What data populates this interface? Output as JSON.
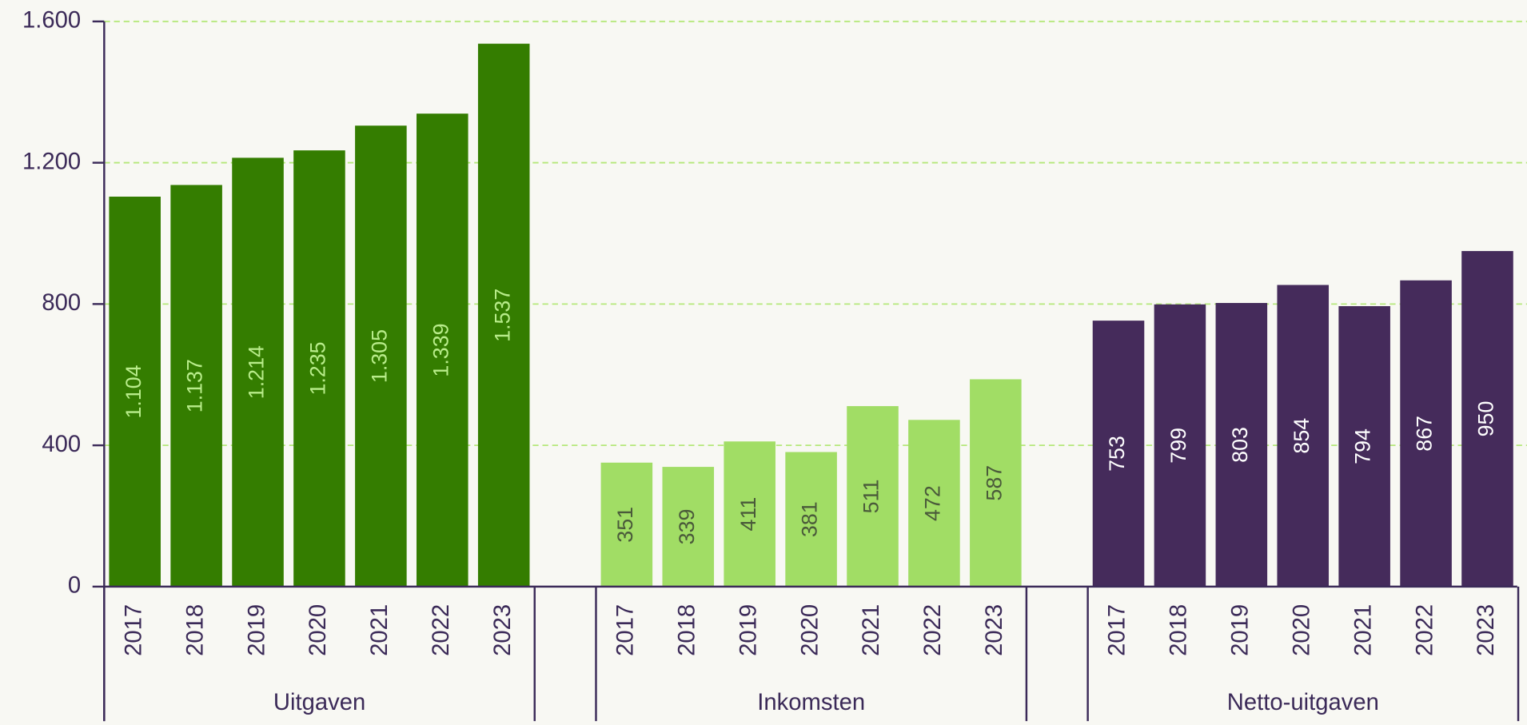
{
  "chart_data": {
    "type": "bar",
    "categories": [
      "2017",
      "2018",
      "2019",
      "2020",
      "2021",
      "2022",
      "2023"
    ],
    "series": [
      {
        "name": "Uitgaven",
        "color": "#347d00",
        "label_color": "#b8ec8a",
        "values": [
          1104,
          1137,
          1214,
          1235,
          1305,
          1339,
          1537
        ],
        "value_labels": [
          "1.104",
          "1.137",
          "1.214",
          "1.235",
          "1.305",
          "1.339",
          "1.537"
        ]
      },
      {
        "name": "Inkomsten",
        "color": "#a1dd65",
        "label_color": "#4a5a3a",
        "values": [
          351,
          339,
          411,
          381,
          511,
          472,
          587
        ]
      },
      {
        "name": "Netto-uitgaven",
        "color": "#452b5b",
        "label_color": "#ffffff",
        "values": [
          753,
          799,
          803,
          854,
          794,
          867,
          950
        ]
      }
    ],
    "ylim": [
      0,
      1600
    ],
    "yticks": [
      0,
      400,
      800,
      {
        "value": 1200,
        "label": "1.200"
      },
      {
        "value": 1600,
        "label": "1.600"
      }
    ],
    "grid": true
  }
}
